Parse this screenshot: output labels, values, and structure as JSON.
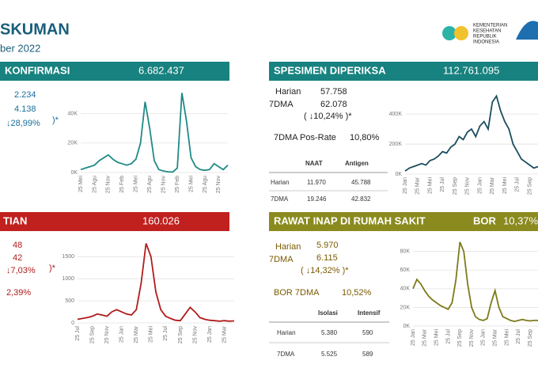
{
  "header": {
    "title": "SKUMAN",
    "date": "ber 2022",
    "logo": [
      "KEMENTERIAN",
      "KESEHATAN",
      "REPUBLIK",
      "INDONESIA"
    ]
  },
  "konfirmasi": {
    "title": "KONFIRMASI",
    "total": "6.682.437",
    "harian": "2.234",
    "dma": "4.138",
    "change": "↓28,99%",
    "note": ")*"
  },
  "spesimen": {
    "title": "SPESIMEN  DIPERIKSA",
    "total": "112.761.095",
    "harian_label": "Harian",
    "harian": "57.758",
    "dma_label": "7DMA",
    "dma": "62.078",
    "change": "( ↓10,24% )*",
    "posrate_label": "7DMA Pos-Rate",
    "posrate": "10,80%",
    "table": {
      "columns": [
        "NAAT",
        "Antigen"
      ],
      "rows": [
        [
          "Harian",
          "11.970",
          "45.788"
        ],
        [
          "7DMA",
          "19.246",
          "42.832"
        ]
      ]
    }
  },
  "kematian": {
    "title": "TIAN",
    "total": "160.026",
    "harian": "48",
    "dma": "42",
    "change": "↓7,03%",
    "note": ")*",
    "cfr": "2,39%"
  },
  "rawat": {
    "title": "RAWAT INAP  DI RUMAH SAKIT",
    "bor_label": "BOR",
    "bor": "10,37%",
    "harian_label": "Harian",
    "harian": "5.970",
    "dma_label": "7DMA",
    "dma": "6.115",
    "change": "( ↓14,32% )*",
    "bor7_label": "BOR 7DMA",
    "bor7": "10,52%",
    "table": {
      "columns": [
        "Isolasi",
        "Intensif"
      ],
      "rows": [
        [
          "Harian",
          "5.380",
          "590"
        ],
        [
          "7DMA",
          "5.525",
          "589"
        ]
      ]
    }
  },
  "chart_data": [
    {
      "type": "line",
      "color": "#1f8a86",
      "categories": [
        "25 Mei",
        null,
        null,
        "25 Agu",
        null,
        null,
        "25 Nov",
        null,
        null,
        "25 Feb",
        null,
        null,
        "25 Mei",
        null,
        null,
        "25 Agu",
        null,
        null,
        "25 Nov",
        null,
        null,
        "25 Feb",
        null,
        null,
        "25 Mei",
        null,
        null,
        "25 Agu",
        null,
        null,
        "25 Nov",
        null,
        null
      ],
      "values": [
        2000,
        3000,
        4000,
        5000,
        8000,
        10000,
        12000,
        9000,
        7000,
        6000,
        5000,
        6000,
        9000,
        20000,
        48000,
        30000,
        8000,
        2000,
        1000,
        500,
        400,
        3000,
        54000,
        35000,
        10000,
        4000,
        2000,
        1500,
        2000,
        6000,
        4000,
        2000,
        5000
      ],
      "ylim": [
        0,
        58000
      ],
      "yticks": [
        {
          "value": 0,
          "label": "0K"
        },
        {
          "value": 20000,
          "label": "20K"
        },
        {
          "value": 40000,
          "label": "40K"
        }
      ]
    },
    {
      "type": "line",
      "color": "#1b4f5e",
      "categories": [
        "25 Jan",
        null,
        null,
        "25 Mar",
        null,
        null,
        "25 Mei",
        null,
        null,
        "25 Jul",
        null,
        null,
        "25 Sep",
        null,
        null,
        "25 Nov",
        null,
        null,
        "25 Jan",
        null,
        null,
        "25 Mar",
        null,
        null,
        "25 Mei",
        null,
        null,
        "25 Jul",
        null,
        null,
        "25 Sep",
        null,
        null
      ],
      "values": [
        20000,
        40000,
        50000,
        60000,
        70000,
        60000,
        90000,
        100000,
        120000,
        150000,
        140000,
        180000,
        200000,
        250000,
        230000,
        280000,
        300000,
        250000,
        320000,
        350000,
        300000,
        480000,
        520000,
        420000,
        350000,
        300000,
        200000,
        150000,
        100000,
        80000,
        60000,
        40000,
        50000
      ],
      "ylim": [
        0,
        580000
      ],
      "yticks": [
        {
          "value": 0,
          "label": "0K"
        },
        {
          "value": 200000,
          "label": "200K"
        },
        {
          "value": 400000,
          "label": "400K"
        }
      ]
    },
    {
      "type": "line",
      "color": "#b01c1c",
      "categories": [
        "25 Jul",
        null,
        null,
        "25 Sep",
        null,
        null,
        "25 Nov",
        null,
        null,
        "25 Jan",
        null,
        null,
        "25 Mar",
        null,
        null,
        "25 Mei",
        null,
        null,
        "25 Jul",
        null,
        null,
        "25 Sep",
        null,
        null,
        "25 Nov",
        null,
        null,
        "25 Jan",
        null,
        null,
        "25 Mar",
        null,
        null
      ],
      "values": [
        80,
        100,
        120,
        150,
        200,
        180,
        150,
        250,
        300,
        250,
        200,
        180,
        300,
        900,
        1800,
        1500,
        700,
        300,
        150,
        100,
        60,
        50,
        200,
        350,
        250,
        120,
        80,
        60,
        50,
        40,
        50,
        40,
        45
      ],
      "ylim": [
        0,
        1900
      ],
      "yticks": [
        0,
        500,
        1000,
        1500
      ]
    },
    {
      "type": "line",
      "color": "#7d7a1a",
      "categories": [
        "25 Jan",
        null,
        null,
        "25 Mar",
        null,
        null,
        "25 Mei",
        null,
        null,
        "25 Jul",
        null,
        null,
        "25 Sep",
        null,
        null,
        "25 Nov",
        null,
        null,
        "25 Jan",
        null,
        null,
        "25 Mar",
        null,
        null,
        "25 Mei",
        null,
        null,
        "25 Jul",
        null,
        null,
        "25 Sep",
        null,
        null
      ],
      "values": [
        40000,
        50000,
        45000,
        38000,
        32000,
        28000,
        25000,
        22000,
        20000,
        18000,
        25000,
        50000,
        90000,
        80000,
        45000,
        20000,
        10000,
        7000,
        6000,
        8000,
        25000,
        38000,
        20000,
        10000,
        8000,
        6000,
        5000,
        6000,
        7000,
        6000,
        5500,
        6000,
        6000
      ],
      "ylim": [
        0,
        95000
      ],
      "yticks": [
        {
          "value": 0,
          "label": "0K"
        },
        {
          "value": 20000,
          "label": "20K"
        },
        {
          "value": 40000,
          "label": "40K"
        },
        {
          "value": 60000,
          "label": "60K"
        },
        {
          "value": 80000,
          "label": "80K"
        }
      ]
    }
  ]
}
